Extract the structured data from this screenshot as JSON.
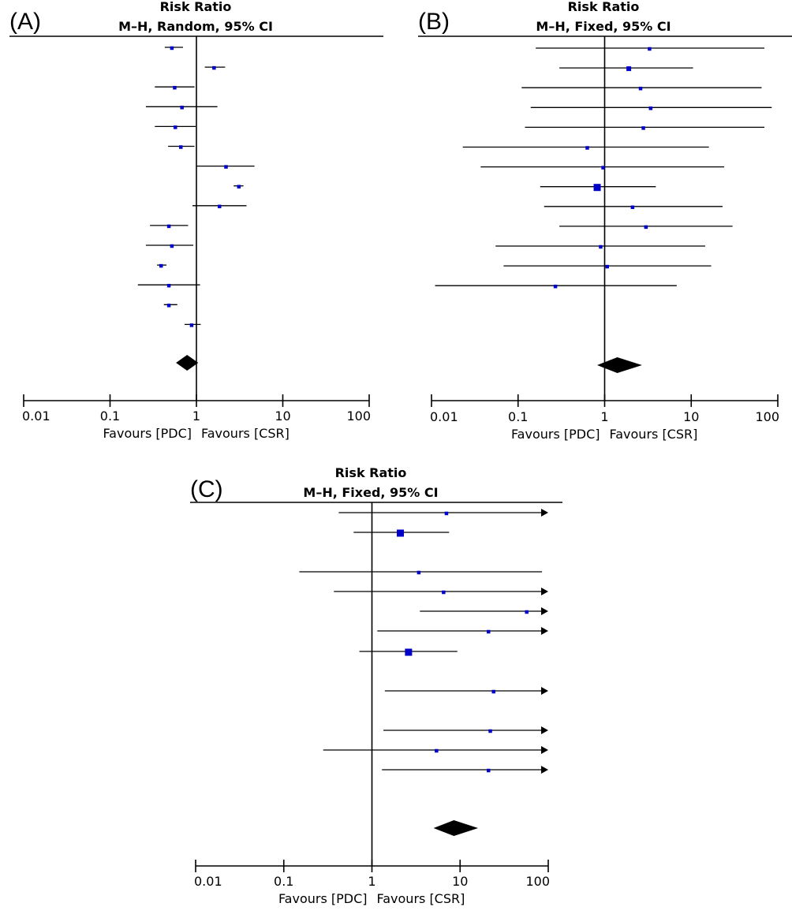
{
  "chart_data": [
    {
      "type": "forest",
      "panel_label": "(A)",
      "title": "Risk Ratio",
      "subtitle": "M–H, Random, 95% CI",
      "scale": "log",
      "xlim": [
        0.01,
        100
      ],
      "x_ticks": [
        0.01,
        0.1,
        1,
        10,
        100
      ],
      "x_tick_labels": [
        "0.01",
        "0.1",
        "1",
        "10",
        "100"
      ],
      "favours_left": "Favours [PDC]",
      "favours_right": "Favours [CSR]",
      "studies": [
        {
          "rr": 0.52,
          "lo": 0.43,
          "hi": 0.7,
          "weight": 1
        },
        {
          "rr": 1.6,
          "lo": 1.25,
          "hi": 2.15,
          "weight": 1
        },
        {
          "rr": 0.56,
          "lo": 0.33,
          "hi": 0.95,
          "weight": 1
        },
        {
          "rr": 0.68,
          "lo": 0.26,
          "hi": 1.75,
          "weight": 1
        },
        {
          "rr": 0.57,
          "lo": 0.33,
          "hi": 0.98,
          "weight": 1
        },
        {
          "rr": 0.66,
          "lo": 0.47,
          "hi": 0.95,
          "weight": 1
        },
        {
          "rr": 2.2,
          "lo": 1.0,
          "hi": 4.7,
          "weight": 1
        },
        {
          "rr": 3.1,
          "lo": 2.7,
          "hi": 3.5,
          "weight": 1
        },
        {
          "rr": 1.85,
          "lo": 0.9,
          "hi": 3.8,
          "weight": 1
        },
        {
          "rr": 0.48,
          "lo": 0.29,
          "hi": 0.8,
          "weight": 1
        },
        {
          "rr": 0.52,
          "lo": 0.26,
          "hi": 0.92,
          "weight": 1
        },
        {
          "rr": 0.39,
          "lo": 0.35,
          "hi": 0.45,
          "weight": 1
        },
        {
          "rr": 0.48,
          "lo": 0.21,
          "hi": 1.1,
          "weight": 1
        },
        {
          "rr": 0.48,
          "lo": 0.42,
          "hi": 0.6,
          "weight": 1
        },
        {
          "rr": 0.88,
          "lo": 0.73,
          "hi": 1.12,
          "weight": 1
        }
      ],
      "pooled": {
        "rr": 0.78,
        "lo": 0.58,
        "hi": 1.05
      }
    },
    {
      "type": "forest",
      "panel_label": "(B)",
      "title": "Risk Ratio",
      "subtitle": "M–H, Fixed, 95% CI",
      "scale": "log",
      "xlim": [
        0.01,
        100
      ],
      "x_ticks": [
        0.01,
        0.1,
        1,
        10,
        100
      ],
      "x_tick_labels": [
        "0.01",
        "0.1",
        "1",
        "10",
        "100"
      ],
      "favours_left": "Favours [PDC]",
      "favours_right": "Favours [CSR]",
      "studies": [
        {
          "rr": 3.3,
          "lo": 0.16,
          "hi": 70,
          "weight": 1
        },
        {
          "rr": 1.9,
          "lo": 0.3,
          "hi": 10.5,
          "weight": 1.5
        },
        {
          "rr": 2.6,
          "lo": 0.11,
          "hi": 65,
          "weight": 1
        },
        {
          "rr": 3.4,
          "lo": 0.14,
          "hi": 85,
          "weight": 1
        },
        {
          "rr": 2.8,
          "lo": 0.12,
          "hi": 70,
          "weight": 1
        },
        {
          "rr": 0.63,
          "lo": 0.023,
          "hi": 16,
          "weight": 1
        },
        {
          "rr": 0.96,
          "lo": 0.037,
          "hi": 24,
          "weight": 1
        },
        {
          "rr": 0.82,
          "lo": 0.18,
          "hi": 3.9,
          "weight": 3
        },
        {
          "rr": 2.1,
          "lo": 0.2,
          "hi": 23,
          "weight": 1
        },
        {
          "rr": 3.0,
          "lo": 0.3,
          "hi": 30,
          "weight": 1
        },
        {
          "rr": 0.9,
          "lo": 0.055,
          "hi": 14.5,
          "weight": 1
        },
        {
          "rr": 1.07,
          "lo": 0.068,
          "hi": 17,
          "weight": 1
        },
        {
          "rr": 0.27,
          "lo": 0.011,
          "hi": 6.8,
          "weight": 1
        }
      ],
      "pooled": {
        "rr": 1.4,
        "lo": 0.82,
        "hi": 2.7
      }
    },
    {
      "type": "forest",
      "panel_label": "(C)",
      "title": "Risk Ratio",
      "subtitle": "M–H, Fixed, 95% CI",
      "scale": "log",
      "xlim": [
        0.01,
        100
      ],
      "x_ticks": [
        0.01,
        0.1,
        1,
        10,
        100
      ],
      "x_tick_labels": [
        "0.01",
        "0.1",
        "1",
        "10",
        "100"
      ],
      "favours_left": "Favours [PDC]",
      "favours_right": "Favours [CSR]",
      "studies": [
        {
          "rr": 7.0,
          "lo": 0.42,
          "hi": 100,
          "arrow": true,
          "weight": 1
        },
        {
          "rr": 2.1,
          "lo": 0.62,
          "hi": 7.5,
          "arrow": false,
          "weight": 3
        },
        {
          "rr": 3.4,
          "lo": 0.15,
          "hi": 85,
          "arrow": false,
          "weight": 1
        },
        {
          "rr": 6.5,
          "lo": 0.37,
          "hi": 100,
          "arrow": true,
          "weight": 1
        },
        {
          "rr": 57,
          "lo": 3.5,
          "hi": 100,
          "arrow": true,
          "weight": 1
        },
        {
          "rr": 21,
          "lo": 1.15,
          "hi": 100,
          "arrow": true,
          "weight": 1
        },
        {
          "rr": 2.6,
          "lo": 0.72,
          "hi": 9.3,
          "arrow": false,
          "weight": 3
        },
        {
          "rr": 24,
          "lo": 1.4,
          "hi": 100,
          "arrow": true,
          "weight": 1
        },
        {
          "rr": 22,
          "lo": 1.35,
          "hi": 100,
          "arrow": true,
          "weight": 1
        },
        {
          "rr": 5.4,
          "lo": 0.28,
          "hi": 100,
          "arrow": true,
          "weight": 1
        },
        {
          "rr": 21,
          "lo": 1.3,
          "hi": 100,
          "arrow": true,
          "weight": 1
        }
      ],
      "pooled": {
        "rr": 8.5,
        "lo": 5.0,
        "hi": 16.0
      }
    }
  ]
}
